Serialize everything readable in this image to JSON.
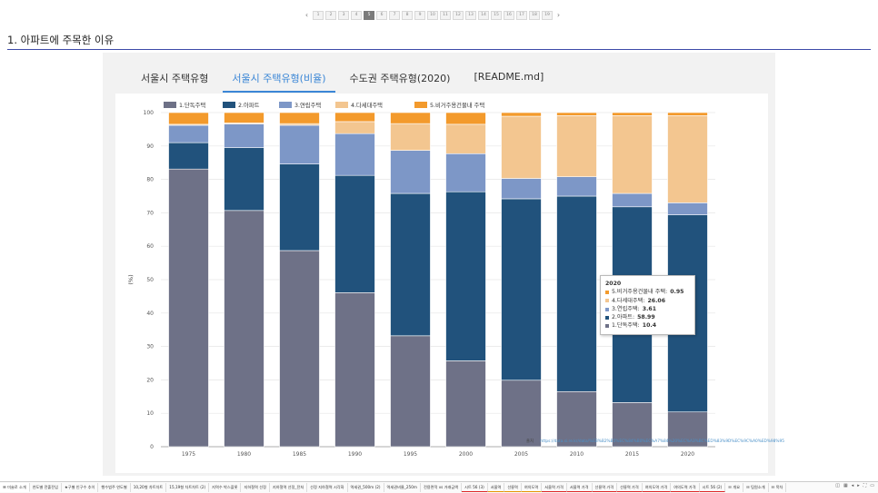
{
  "pager": {
    "prev": "‹",
    "next": "›",
    "pages": [
      "1",
      "2",
      "3",
      "4",
      "5",
      "6",
      "7",
      "8",
      "9",
      "10",
      "11",
      "12",
      "13",
      "14",
      "15",
      "16",
      "17",
      "18",
      "19"
    ],
    "active_index": 4
  },
  "heading": "1. 아파트에 주목한 이유",
  "tabs": [
    {
      "label": "서울시 주택유형",
      "active": false
    },
    {
      "label": "서울시 주택유형(비율)",
      "active": true
    },
    {
      "label": "수도권 주택유형(2020)",
      "active": false
    },
    {
      "label": "[README.md]",
      "active": false
    }
  ],
  "chart_data": {
    "type": "bar",
    "stacked": true,
    "ylabel": "(%)",
    "ylim": [
      0,
      100
    ],
    "yticks": [
      0,
      10,
      20,
      30,
      40,
      50,
      60,
      70,
      80,
      90,
      100
    ],
    "grid": true,
    "legend_position": "top-left",
    "categories": [
      "1975",
      "1980",
      "1985",
      "1990",
      "1995",
      "2000",
      "2005",
      "2010",
      "2015",
      "2020"
    ],
    "series": [
      {
        "name": "1.단독주택",
        "color": "#6e7187",
        "values": [
          83.1,
          70.7,
          58.7,
          46.1,
          33.2,
          25.7,
          19.9,
          16.5,
          13.2,
          10.4
        ]
      },
      {
        "name": "2.아파트",
        "color": "#21527c",
        "values": [
          7.9,
          18.8,
          25.9,
          35.1,
          42.6,
          50.6,
          54.3,
          58.5,
          58.6,
          58.99
        ]
      },
      {
        "name": "3.연립주택",
        "color": "#7d97c7",
        "values": [
          5.2,
          7.1,
          11.6,
          12.5,
          12.9,
          11.4,
          6.1,
          5.8,
          4.0,
          3.61
        ]
      },
      {
        "name": "4.다세대주택",
        "color": "#f3c690",
        "values": [
          0.3,
          0.3,
          0.5,
          3.6,
          8.0,
          8.8,
          18.6,
          18.3,
          23.3,
          26.06
        ]
      },
      {
        "name": "5.비거주용건물내 주택",
        "color": "#f39a2c",
        "values": [
          3.5,
          3.1,
          3.3,
          2.7,
          3.3,
          3.5,
          1.1,
          0.9,
          0.9,
          0.95
        ]
      }
    ]
  },
  "tooltip": {
    "title": "2020",
    "rows": [
      {
        "label": "5.비거주용건물내 주택:",
        "value": "0.95",
        "color": "#f39a2c"
      },
      {
        "label": "4.다세대주택:",
        "value": "26.06",
        "color": "#f3c690"
      },
      {
        "label": "3.연립주택:",
        "value": "3.61",
        "color": "#7d97c7"
      },
      {
        "label": "2.아파트:",
        "value": "58.99",
        "color": "#21527c"
      },
      {
        "label": "1.단독주택:",
        "value": "10.4",
        "color": "#6e7187"
      }
    ]
  },
  "source": {
    "label": "출처",
    "link": "https://data.si.re.kr/data/%EB%B2%B5%EC%84%B0%EC%A7%84%20%EC%A3%BC%ED%83%9D%EC%9C%A0%ED%98%95"
  },
  "sheets": [
    {
      "label": "☰ 미술로 소개",
      "style": "active"
    },
    {
      "label": "연도별 전출전입",
      "style": ""
    },
    {
      "label": "★구별 인구수 추이",
      "style": ""
    },
    {
      "label": "행수범주 연도별",
      "style": ""
    },
    {
      "label": "10,20형 차트차트",
      "style": ""
    },
    {
      "label": "15,19형 차트차트 (2)",
      "style": ""
    },
    {
      "label": "지역수 박스플롯",
      "style": ""
    },
    {
      "label": "지하철역 선정",
      "style": ""
    },
    {
      "label": "지하철역 선정_전처",
      "style": ""
    },
    {
      "label": "선정 지하철역 시각화",
      "style": ""
    },
    {
      "label": "역세권_500m (2)",
      "style": ""
    },
    {
      "label": "역세권비율_250m",
      "style": ""
    },
    {
      "label": "전용면적 vs 거래금액",
      "style": ""
    },
    {
      "label": "시트 56 (3)",
      "style": "red"
    },
    {
      "label": "서울역",
      "style": "orange"
    },
    {
      "label": "선릉역",
      "style": "orange"
    },
    {
      "label": "여의도역",
      "style": "orange"
    },
    {
      "label": "서울역 가격",
      "style": "red"
    },
    {
      "label": "서울역 가격",
      "style": "red"
    },
    {
      "label": "선릉역 가격",
      "style": "red"
    },
    {
      "label": "선릉역 가격",
      "style": "red"
    },
    {
      "label": "여의도역 가격",
      "style": "red"
    },
    {
      "label": "여의도역 가격",
      "style": "red"
    },
    {
      "label": "시트 56 (2)",
      "style": "red"
    },
    {
      "label": "☷ 개요",
      "style": ""
    },
    {
      "label": "☷ 팀원소개",
      "style": ""
    },
    {
      "label": "☷ 목차",
      "style": ""
    }
  ],
  "bottom_controls": [
    "◫",
    "▦",
    "◂",
    "▸",
    "⛶",
    "▭"
  ]
}
